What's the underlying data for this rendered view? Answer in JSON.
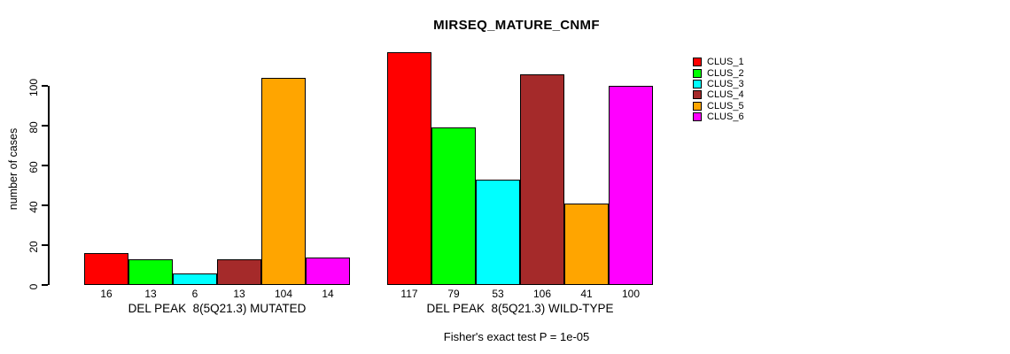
{
  "title": "MIRSEQ_MATURE_CNMF",
  "ylabel": "number of cases",
  "footer": "Fisher's exact test P = 1e-05",
  "legend": {
    "items": [
      {
        "label": "CLUS_1",
        "color": "#FF0000"
      },
      {
        "label": "CLUS_2",
        "color": "#00FF00"
      },
      {
        "label": "CLUS_3",
        "color": "#00FFFF"
      },
      {
        "label": "CLUS_4",
        "color": "#A52A2A"
      },
      {
        "label": "CLUS_5",
        "color": "#FFA500"
      },
      {
        "label": "CLUS_6",
        "color": "#FF00FF"
      }
    ]
  },
  "chart_data": {
    "type": "bar",
    "title": "MIRSEQ_MATURE_CNMF",
    "xlabel": "",
    "ylabel": "number of cases",
    "yticks": [
      0,
      20,
      40,
      60,
      80,
      100
    ],
    "ylim": [
      0,
      117
    ],
    "grid": false,
    "legend_position": "right",
    "annotation": "Fisher's exact test P = 1e-05",
    "categories": [
      "DEL PEAK  8(5Q21.3) MUTATED",
      "DEL PEAK  8(5Q21.3) WILD-TYPE"
    ],
    "series": [
      {
        "name": "CLUS_1",
        "color": "#FF0000",
        "values": [
          16,
          117
        ]
      },
      {
        "name": "CLUS_2",
        "color": "#00FF00",
        "values": [
          13,
          79
        ]
      },
      {
        "name": "CLUS_3",
        "color": "#00FFFF",
        "values": [
          6,
          53
        ]
      },
      {
        "name": "CLUS_4",
        "color": "#A52A2A",
        "values": [
          13,
          106
        ]
      },
      {
        "name": "CLUS_5",
        "color": "#FFA500",
        "values": [
          104,
          41
        ]
      },
      {
        "name": "CLUS_6",
        "color": "#FF00FF",
        "values": [
          14,
          100
        ]
      }
    ],
    "groups": [
      {
        "label": "DEL PEAK  8(5Q21.3) MUTATED",
        "values": [
          16,
          13,
          6,
          13,
          104,
          14
        ]
      },
      {
        "label": "DEL PEAK  8(5Q21.3) WILD-TYPE",
        "values": [
          117,
          79,
          53,
          106,
          41,
          100
        ]
      }
    ]
  }
}
